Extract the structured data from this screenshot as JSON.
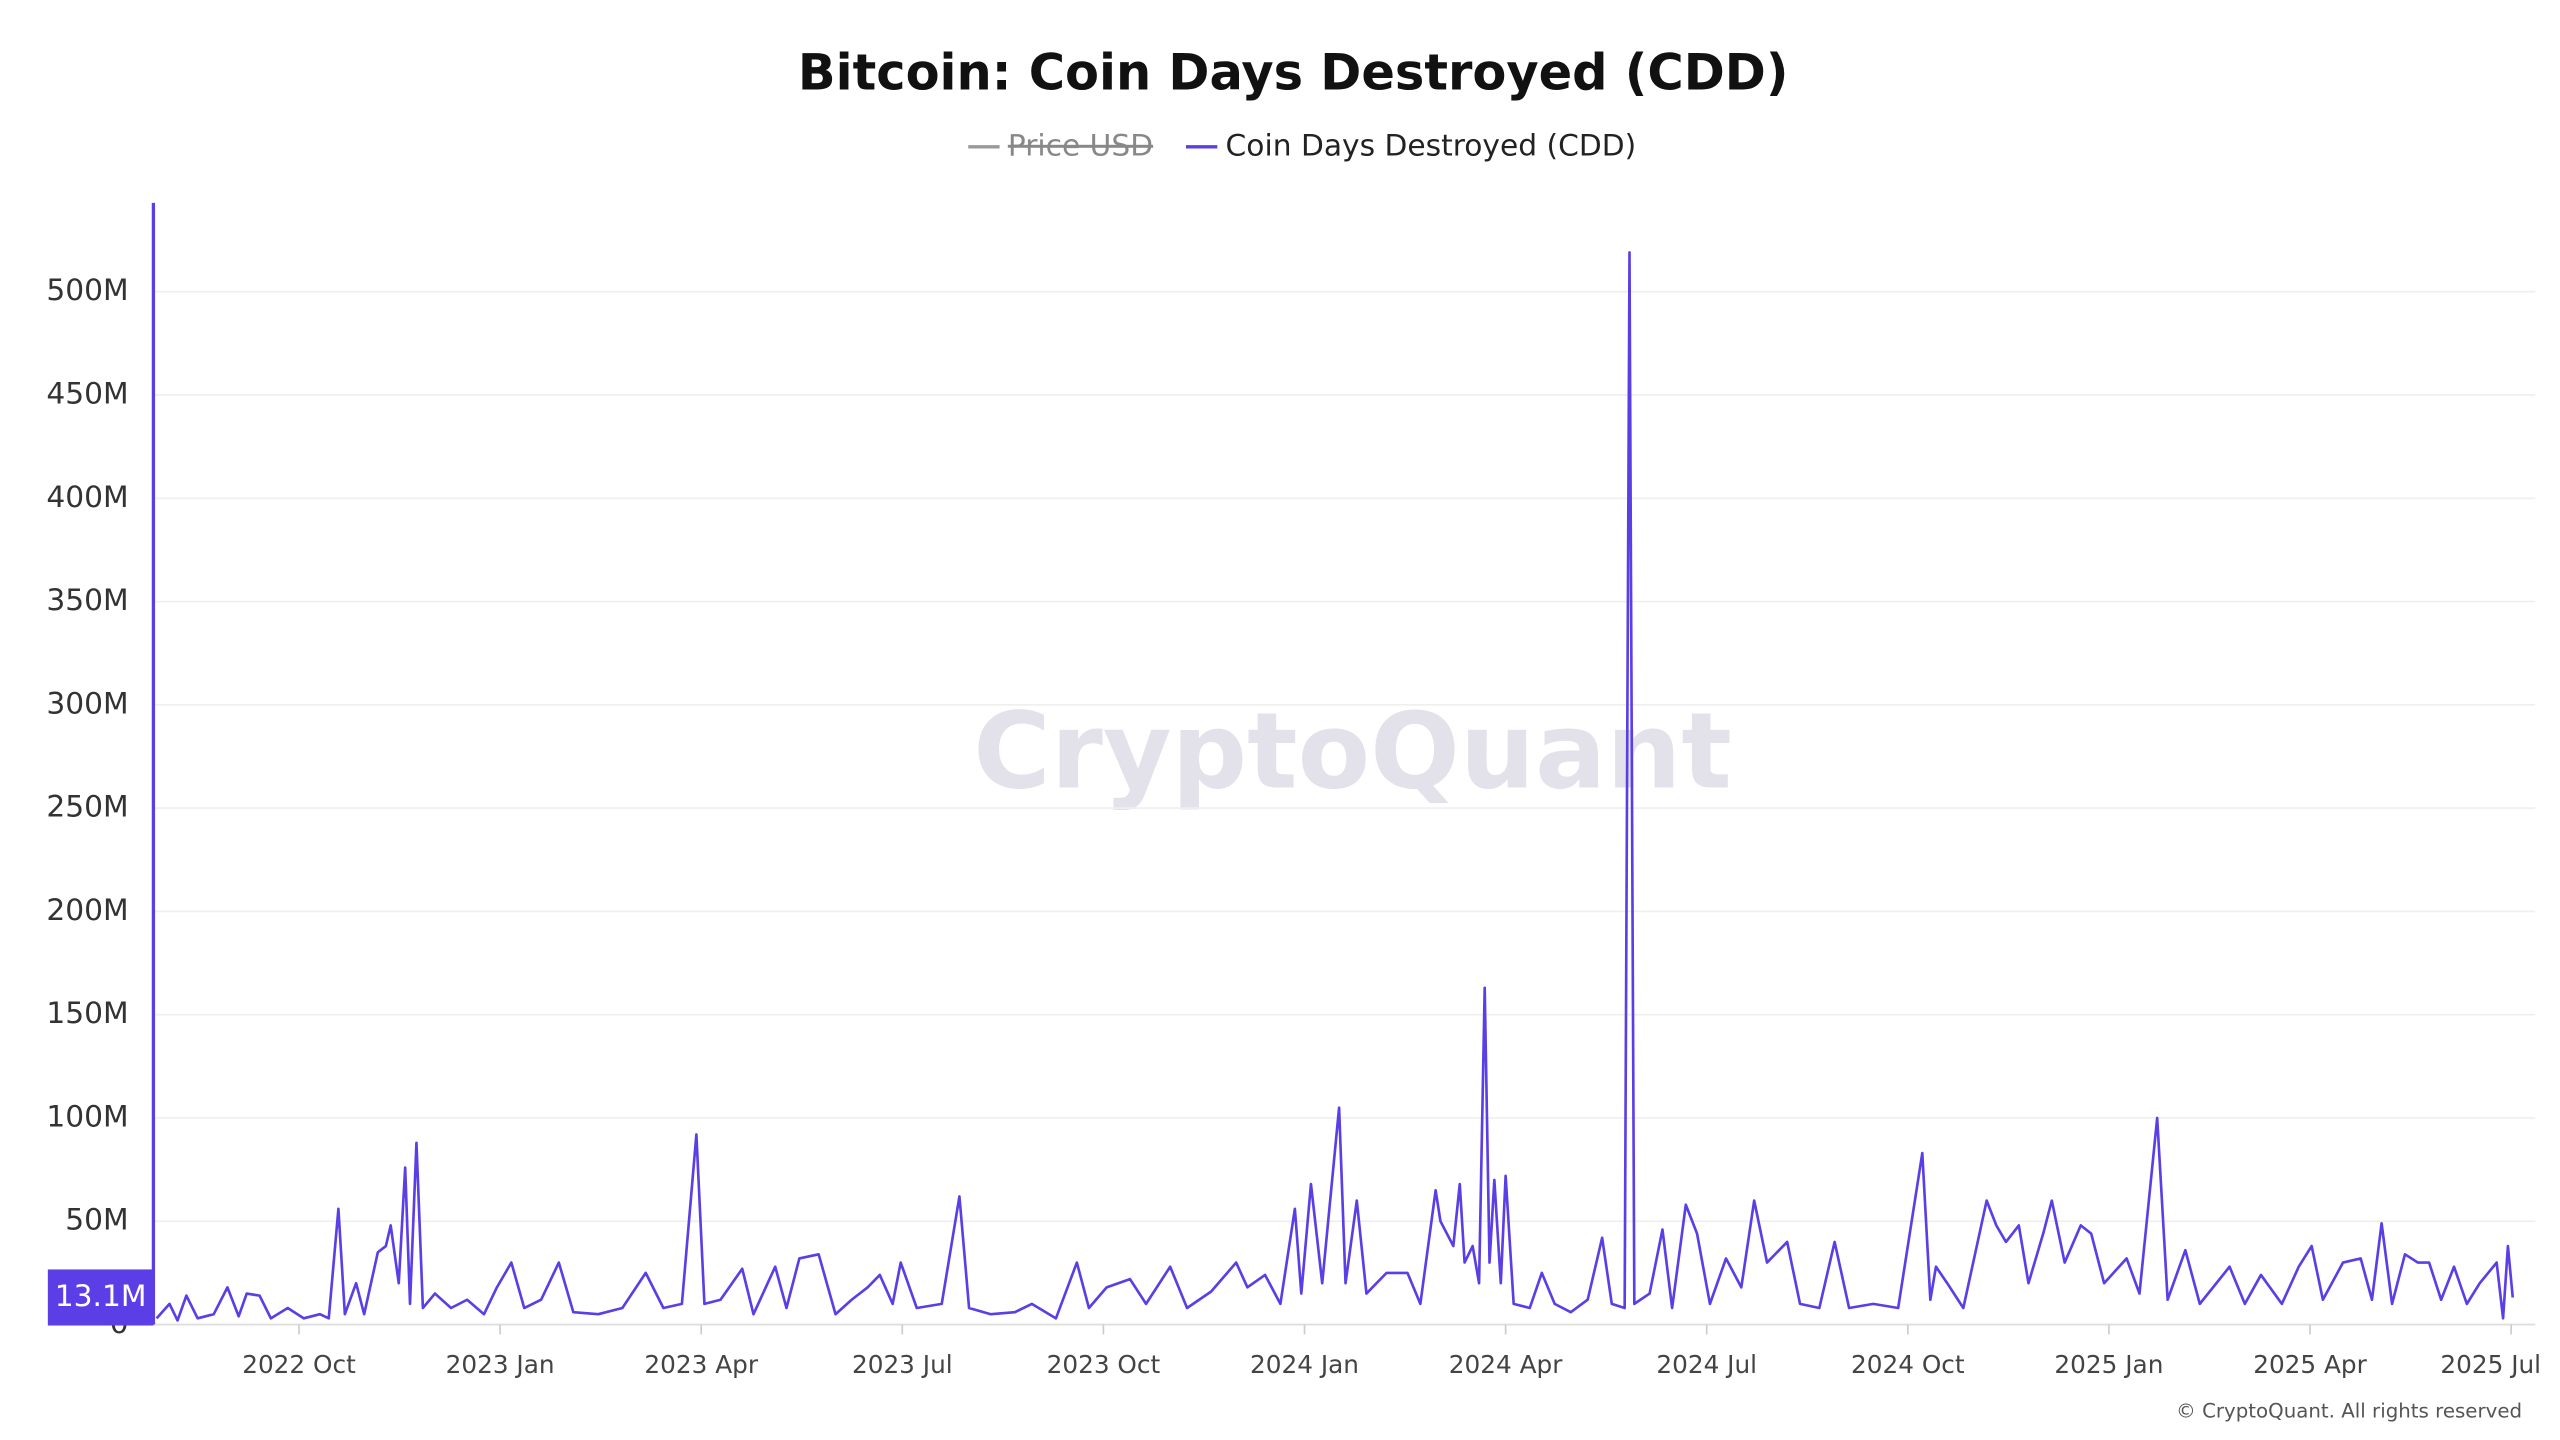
{
  "chart_data": {
    "type": "line",
    "title": "Bitcoin: Coin Days Destroyed (CDD)",
    "hidden_series": [
      {
        "name": "Price USD",
        "color": "#999999"
      }
    ],
    "watermark": "CryptoQuant",
    "copyright": "© CryptoQuant. All rights reserved",
    "last_value": {
      "value": 13100000,
      "label": "13.1M"
    },
    "grid": true,
    "xlim": [
      2022.569,
      2025.53
    ],
    "xticks": [
      {
        "value": 2022.75,
        "label": "2022 Oct"
      },
      {
        "value": 2023.0,
        "label": "2023 Jan"
      },
      {
        "value": 2023.25,
        "label": "2023 Apr"
      },
      {
        "value": 2023.5,
        "label": "2023 Jul"
      },
      {
        "value": 2023.75,
        "label": "2023 Oct"
      },
      {
        "value": 2024.0,
        "label": "2024 Jan"
      },
      {
        "value": 2024.25,
        "label": "2024 Apr"
      },
      {
        "value": 2024.5,
        "label": "2024 Jul"
      },
      {
        "value": 2024.75,
        "label": "2024 Oct"
      },
      {
        "value": 2025.0,
        "label": "2025 Jan"
      },
      {
        "value": 2025.25,
        "label": "2025 Apr"
      },
      {
        "value": 2025.5,
        "label": "2025 Jul"
      }
    ],
    "ylim": [
      0,
      543000000
    ],
    "yticks": [
      0,
      {
        "value": 50000000,
        "label": "50M"
      },
      {
        "value": 100000000,
        "label": "100M"
      },
      {
        "value": 150000000,
        "label": "150M"
      },
      {
        "value": 200000000,
        "label": "200M"
      },
      {
        "value": 250000000,
        "label": "250M"
      },
      {
        "value": 300000000,
        "label": "300M"
      },
      {
        "value": 350000000,
        "label": "350M"
      },
      {
        "value": 400000000,
        "label": "400M"
      },
      {
        "value": 450000000,
        "label": "450M"
      },
      {
        "value": 500000000,
        "label": "500M"
      }
    ],
    "x": [
      2022.573,
      2022.589,
      2022.599,
      2022.61,
      2022.624,
      2022.644,
      2022.661,
      2022.675,
      2022.685,
      2022.701,
      2022.715,
      2022.736,
      2022.756,
      2022.776,
      2022.787,
      2022.799,
      2022.807,
      2022.821,
      2022.831,
      2022.848,
      2022.858,
      2022.864,
      2022.874,
      2022.882,
      2022.888,
      2022.896,
      2022.904,
      2022.919,
      2022.939,
      2022.959,
      2022.98,
      2022.996,
      2023.014,
      2023.03,
      2023.051,
      2023.073,
      2023.091,
      2023.122,
      2023.152,
      2023.181,
      2023.203,
      2023.226,
      2023.244,
      2023.254,
      2023.274,
      2023.301,
      2023.315,
      2023.342,
      2023.356,
      2023.372,
      2023.396,
      2023.417,
      2023.437,
      2023.457,
      2023.472,
      2023.488,
      2023.498,
      2023.518,
      2023.549,
      2023.571,
      2023.583,
      2023.61,
      2023.64,
      2023.661,
      2023.691,
      2023.717,
      2023.732,
      2023.754,
      2023.783,
      2023.803,
      2023.833,
      2023.854,
      2023.884,
      2023.915,
      2023.929,
      2023.951,
      2023.97,
      2023.988,
      2023.996,
      2024.008,
      2024.022,
      2024.043,
      2024.051,
      2024.065,
      2024.077,
      2024.102,
      2024.128,
      2024.144,
      2024.163,
      2024.169,
      2024.185,
      2024.193,
      2024.199,
      2024.209,
      2024.217,
      2024.224,
      2024.23,
      2024.236,
      2024.244,
      2024.25,
      2024.26,
      2024.28,
      2024.295,
      2024.311,
      2024.331,
      2024.352,
      2024.37,
      2024.382,
      2024.398,
      2024.404,
      2024.41,
      2024.429,
      2024.445,
      2024.457,
      2024.474,
      2024.488,
      2024.504,
      2024.524,
      2024.543,
      2024.559,
      2024.575,
      2024.6,
      2024.616,
      2024.64,
      2024.659,
      2024.677,
      2024.707,
      2024.738,
      2024.768,
      2024.778,
      2024.785,
      2024.799,
      2024.819,
      2024.848,
      2024.86,
      2024.872,
      2024.888,
      2024.9,
      2024.919,
      2024.929,
      2024.945,
      2024.965,
      2024.978,
      2024.994,
      2025.022,
      2025.038,
      2025.06,
      2025.073,
      2025.095,
      2025.113,
      2025.15,
      2025.169,
      2025.189,
      2025.215,
      2025.236,
      2025.252,
      2025.266,
      2025.291,
      2025.313,
      2025.327,
      2025.339,
      2025.352,
      2025.368,
      2025.384,
      2025.398,
      2025.413,
      2025.429,
      2025.445,
      2025.461,
      2025.482,
      2025.49,
      2025.496,
      2025.502
    ],
    "series": [
      {
        "name": "Coin Days Destroyed (CDD)",
        "color": "#5b3ee6",
        "values": [
          3000000,
          10000000,
          2000000,
          14000000,
          3000000,
          5000000,
          18000000,
          4000000,
          15000000,
          14000000,
          3000000,
          8000000,
          3000000,
          5000000,
          3000000,
          56000000,
          5000000,
          20000000,
          5000000,
          35000000,
          38000000,
          48000000,
          20000000,
          76000000,
          10000000,
          88000000,
          8000000,
          15000000,
          8000000,
          12000000,
          5000000,
          18000000,
          30000000,
          8000000,
          12000000,
          30000000,
          6000000,
          5000000,
          8000000,
          25000000,
          8000000,
          10000000,
          92000000,
          10000000,
          12000000,
          27000000,
          5000000,
          28000000,
          8000000,
          32000000,
          34000000,
          5000000,
          12000000,
          18000000,
          24000000,
          10000000,
          30000000,
          8000000,
          10000000,
          62000000,
          8000000,
          5000000,
          6000000,
          10000000,
          3000000,
          30000000,
          8000000,
          18000000,
          22000000,
          10000000,
          28000000,
          8000000,
          16000000,
          30000000,
          18000000,
          24000000,
          10000000,
          56000000,
          15000000,
          68000000,
          20000000,
          105000000,
          20000000,
          60000000,
          15000000,
          25000000,
          25000000,
          10000000,
          65000000,
          50000000,
          38000000,
          68000000,
          30000000,
          38000000,
          20000000,
          163000000,
          30000000,
          70000000,
          20000000,
          72000000,
          10000000,
          8000000,
          25000000,
          10000000,
          6000000,
          12000000,
          42000000,
          10000000,
          8000000,
          519000000,
          10000000,
          15000000,
          46000000,
          8000000,
          58000000,
          44000000,
          10000000,
          32000000,
          18000000,
          60000000,
          30000000,
          40000000,
          10000000,
          8000000,
          40000000,
          8000000,
          10000000,
          8000000,
          83000000,
          12000000,
          28000000,
          20000000,
          8000000,
          60000000,
          48000000,
          40000000,
          48000000,
          20000000,
          45000000,
          60000000,
          30000000,
          48000000,
          44000000,
          20000000,
          32000000,
          15000000,
          100000000,
          12000000,
          36000000,
          10000000,
          28000000,
          10000000,
          24000000,
          10000000,
          28000000,
          38000000,
          12000000,
          30000000,
          32000000,
          12000000,
          49000000,
          10000000,
          34000000,
          30000000,
          30000000,
          12000000,
          28000000,
          10000000,
          20000000,
          30000000,
          3000000,
          38000000,
          13100000
        ]
      }
    ]
  }
}
